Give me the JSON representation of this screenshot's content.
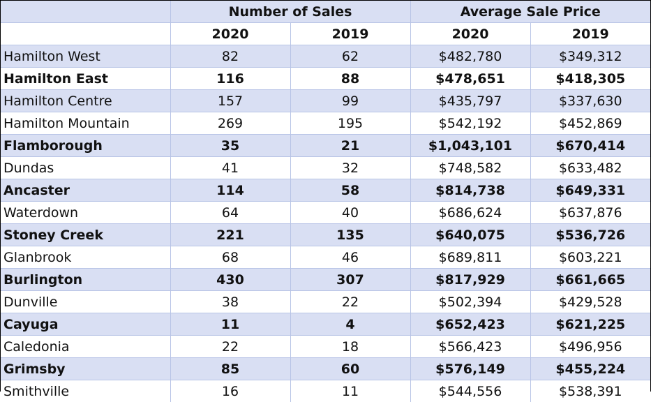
{
  "header": {
    "group_sales": "Number of Sales",
    "group_price": "Average Sale Price",
    "year_a": "2020",
    "year_b": "2019"
  },
  "rows": [
    {
      "area": "Hamilton West",
      "sales_2020": "82",
      "sales_2019": "62",
      "price_2020": "$482,780",
      "price_2019": "$349,312",
      "bold": false
    },
    {
      "area": "Hamilton East",
      "sales_2020": "116",
      "sales_2019": "88",
      "price_2020": "$478,651",
      "price_2019": "$418,305",
      "bold": true
    },
    {
      "area": "Hamilton Centre",
      "sales_2020": "157",
      "sales_2019": "99",
      "price_2020": "$435,797",
      "price_2019": "$337,630",
      "bold": false
    },
    {
      "area": "Hamilton Mountain",
      "sales_2020": "269",
      "sales_2019": "195",
      "price_2020": "$542,192",
      "price_2019": "$452,869",
      "bold": false
    },
    {
      "area": "Flamborough",
      "sales_2020": "35",
      "sales_2019": "21",
      "price_2020": "$1,043,101",
      "price_2019": "$670,414",
      "bold": true
    },
    {
      "area": "Dundas",
      "sales_2020": "41",
      "sales_2019": "32",
      "price_2020": "$748,582",
      "price_2019": "$633,482",
      "bold": false
    },
    {
      "area": "Ancaster",
      "sales_2020": "114",
      "sales_2019": "58",
      "price_2020": "$814,738",
      "price_2019": "$649,331",
      "bold": true
    },
    {
      "area": "Waterdown",
      "sales_2020": "64",
      "sales_2019": "40",
      "price_2020": "$686,624",
      "price_2019": "$637,876",
      "bold": false
    },
    {
      "area": "Stoney Creek",
      "sales_2020": "221",
      "sales_2019": "135",
      "price_2020": "$640,075",
      "price_2019": "$536,726",
      "bold": true
    },
    {
      "area": "Glanbrook",
      "sales_2020": "68",
      "sales_2019": "46",
      "price_2020": "$689,811",
      "price_2019": "$603,221",
      "bold": false
    },
    {
      "area": "Burlington",
      "sales_2020": "430",
      "sales_2019": "307",
      "price_2020": "$817,929",
      "price_2019": "$661,665",
      "bold": true
    },
    {
      "area": "Dunville",
      "sales_2020": "38",
      "sales_2019": "22",
      "price_2020": "$502,394",
      "price_2019": "$429,528",
      "bold": false
    },
    {
      "area": "Cayuga",
      "sales_2020": "11",
      "sales_2019": "4",
      "price_2020": "$652,423",
      "price_2019": "$621,225",
      "bold": true
    },
    {
      "area": "Caledonia",
      "sales_2020": "22",
      "sales_2019": "18",
      "price_2020": "$566,423",
      "price_2019": "$496,956",
      "bold": false
    },
    {
      "area": "Grimsby",
      "sales_2020": "85",
      "sales_2019": "60",
      "price_2020": "$576,149",
      "price_2019": "$455,224",
      "bold": true
    },
    {
      "area": "Smithville",
      "sales_2020": "16",
      "sales_2019": "11",
      "price_2020": "$544,556",
      "price_2019": "$538,391",
      "bold": false
    }
  ],
  "colors": {
    "band": "#d9dff3",
    "white": "#ffffff",
    "grid": "#b8c4e6",
    "border": "#000000"
  }
}
